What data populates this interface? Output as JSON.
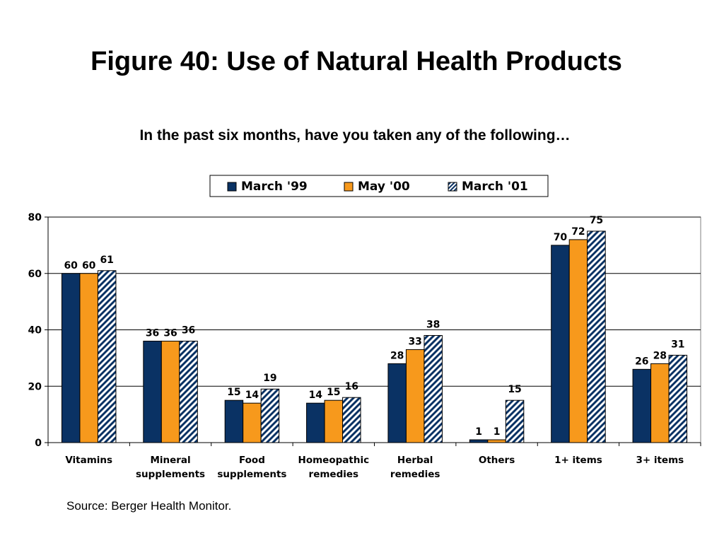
{
  "title": "Figure 40: Use of Natural Health Products",
  "subtitle": "In the past six months, have you taken any of the following…",
  "source": "Source: Berger Health Monitor.",
  "colors": {
    "march99": "#0a3264",
    "may00": "#f7991c",
    "march01_stripe": "#0a3264",
    "march01_bg": "#ffffff",
    "grid": "#000000"
  },
  "chart_data": {
    "type": "bar",
    "categories": [
      [
        "Vitamins"
      ],
      [
        "Mineral",
        "supplements"
      ],
      [
        "Food",
        "supplements"
      ],
      [
        "Homeopathic",
        "remedies"
      ],
      [
        "Herbal",
        "remedies"
      ],
      [
        "Others"
      ],
      [
        "1+ items"
      ],
      [
        "3+ items"
      ]
    ],
    "series": [
      {
        "name": "March '99",
        "values": [
          60,
          36,
          15,
          14,
          28,
          1,
          70,
          26
        ]
      },
      {
        "name": "May '00",
        "values": [
          60,
          36,
          14,
          15,
          33,
          1,
          72,
          28
        ]
      },
      {
        "name": "March '01",
        "values": [
          61,
          36,
          19,
          16,
          38,
          15,
          75,
          31
        ]
      }
    ],
    "ylim": [
      0,
      80
    ],
    "yticks": [
      0,
      20,
      40,
      60,
      80
    ],
    "grid": true,
    "legend": "top-center",
    "xlabel": "",
    "ylabel": ""
  }
}
